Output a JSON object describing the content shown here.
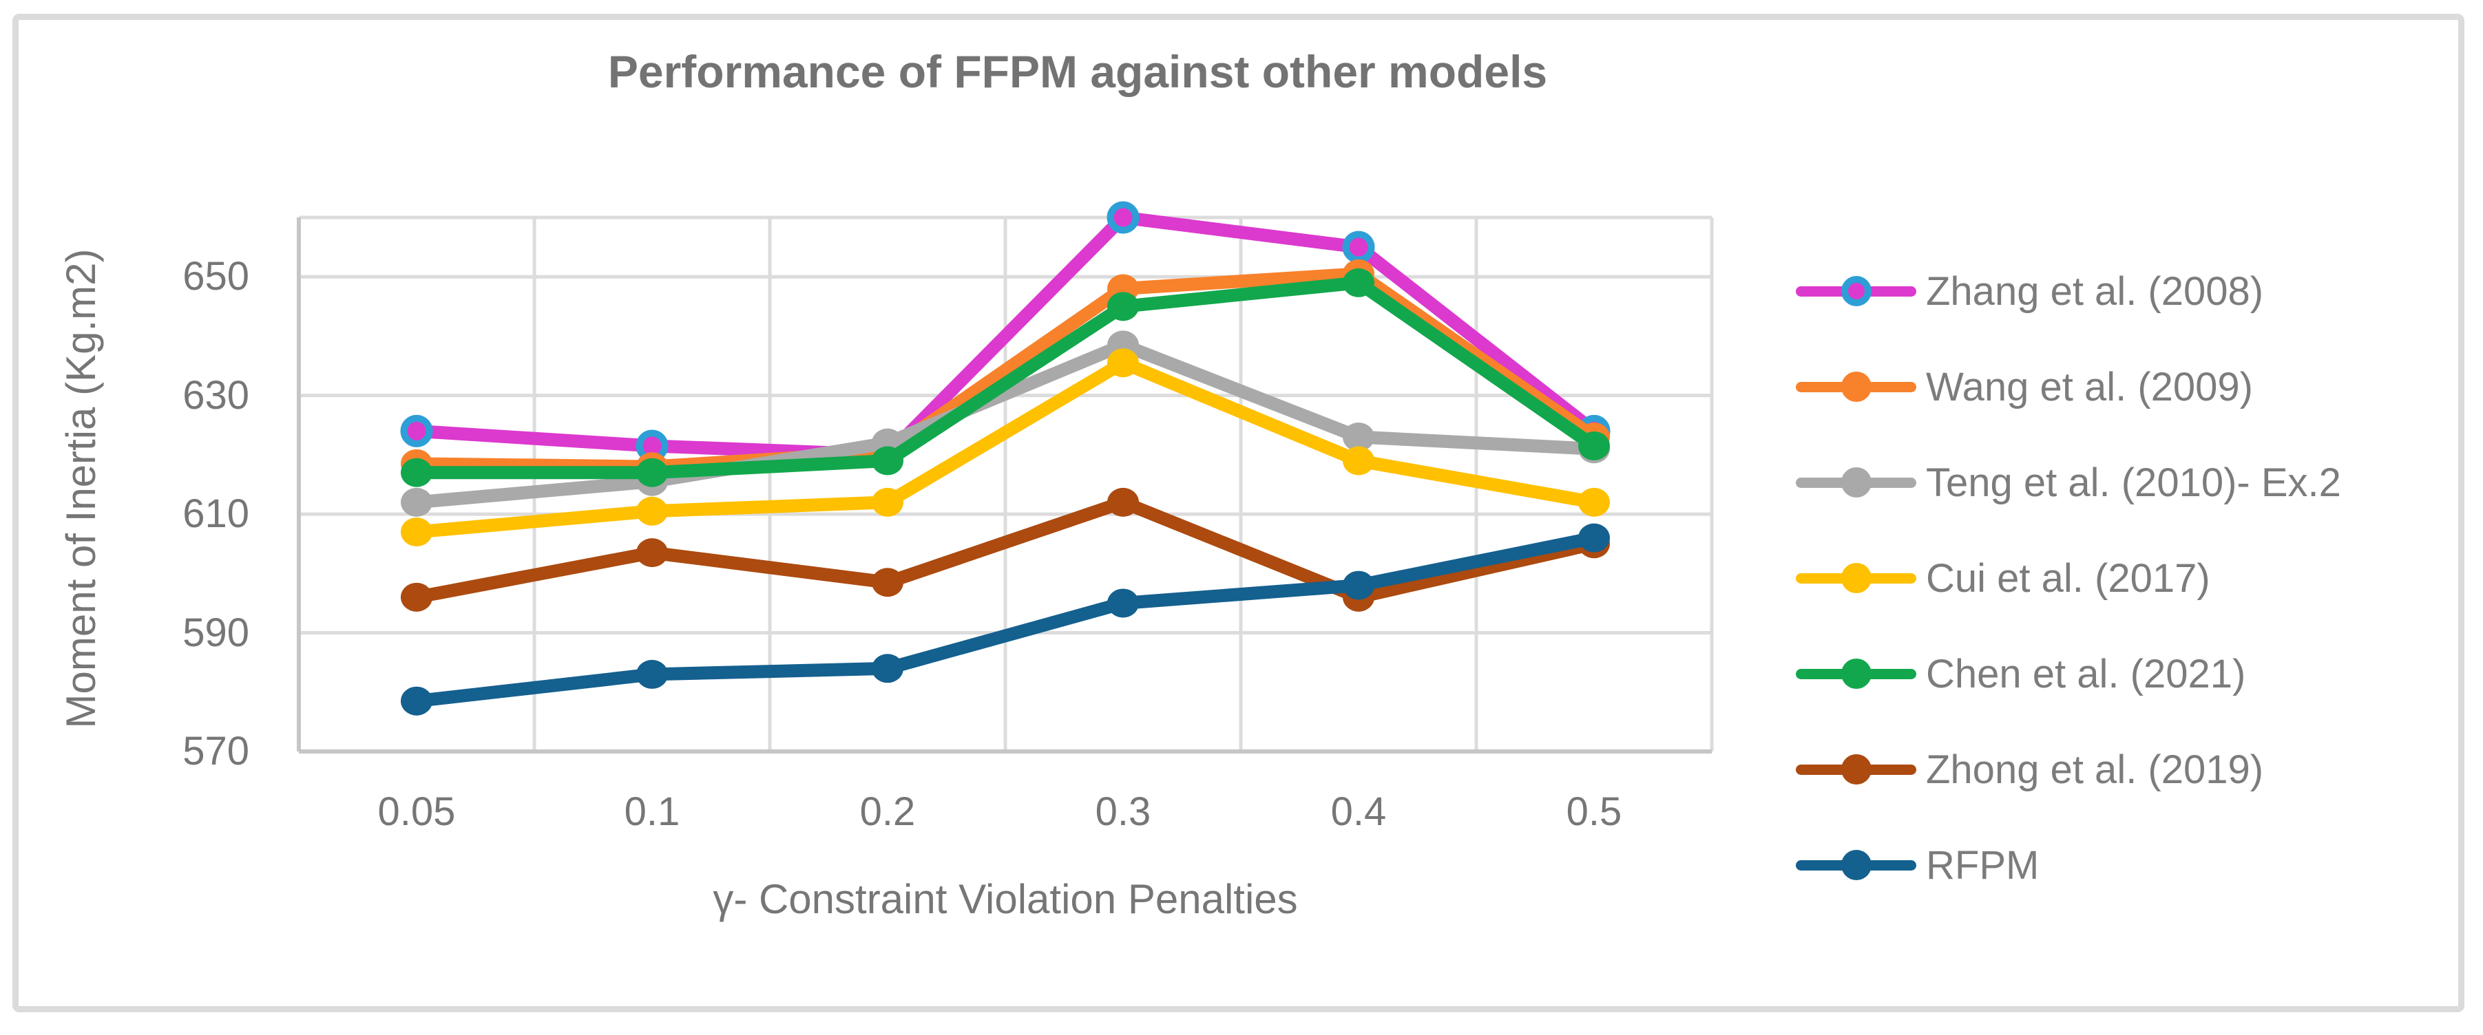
{
  "figure": {
    "frame_color": "#DBDBDB",
    "background": "#FFFFFF"
  },
  "chart_data": {
    "type": "line",
    "title": "Performance of FFPM against other models",
    "xlabel": "γ- Constraint Violation Penalties",
    "ylabel": "Moment of Inertia (Kg.m2)",
    "categories": [
      "0.05",
      "0.1",
      "0.2",
      "0.3",
      "0.4",
      "0.5"
    ],
    "y_ticks": [
      570,
      590,
      610,
      630,
      650
    ],
    "ylim": [
      570,
      660
    ],
    "grid": true,
    "legend_position": "right",
    "series": [
      {
        "name": "Zhang et al. (2008)",
        "color": "#DC39CE",
        "marker_ring": "#2E9FD6",
        "values": [
          624,
          621.5,
          620,
          660,
          655,
          624
        ]
      },
      {
        "name": "Wang et al. (2009)",
        "color": "#F8812B",
        "values": [
          618.5,
          618,
          620.5,
          648,
          650.5,
          623
        ]
      },
      {
        "name": "Teng et al. (2010)- Ex.2",
        "color": "#A9A9A9",
        "values": [
          612,
          615.5,
          622,
          638.5,
          623,
          621
        ]
      },
      {
        "name": "Cui et al. (2017)",
        "color": "#FFC000",
        "values": [
          607,
          610.5,
          612,
          635.5,
          619,
          612
        ]
      },
      {
        "name": "Chen et al. (2021)",
        "color": "#12A74D",
        "values": [
          617,
          617,
          619,
          645,
          649,
          621.5
        ]
      },
      {
        "name": "Zhong et al. (2019)",
        "color": "#AC4A10",
        "values": [
          596,
          603.5,
          598.5,
          612,
          596,
          605
        ]
      },
      {
        "name": "RFPM",
        "color": "#14608F",
        "values": [
          578.5,
          583,
          584,
          595,
          598,
          606
        ]
      }
    ],
    "colors": {
      "gridline": "#DCDCDC",
      "axis_line": "#C6C6C6",
      "title_text": "#737373",
      "axis_text": "#767676",
      "legend_text": "#7C7C7C"
    }
  }
}
